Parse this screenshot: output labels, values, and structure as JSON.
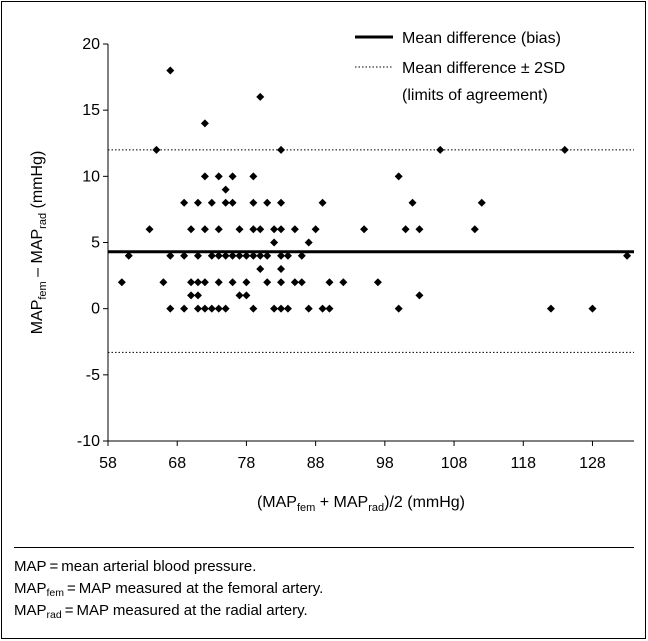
{
  "chart_data": {
    "type": "scatter",
    "title": "",
    "xlabel": {
      "pre": "(MAP",
      "sub1": "fem",
      "mid": " + MAP",
      "sub2": "rad",
      "post": ")/2 (mmHg)"
    },
    "ylabel": {
      "pre": "MAP",
      "sub1": "fem",
      "mid": " – MAP",
      "sub2": "rad",
      "post": " (mmHg)"
    },
    "xlim": [
      58,
      134
    ],
    "ylim": [
      -10,
      20
    ],
    "xticks": [
      58,
      68,
      78,
      88,
      98,
      108,
      118,
      128
    ],
    "yticks": [
      -10,
      -5,
      0,
      5,
      10,
      15,
      20
    ],
    "grid": false,
    "legend_position": "top-right",
    "legend": [
      {
        "label": "Mean difference (bias)",
        "style": "solid"
      },
      {
        "label": "Mean difference ± 2SD",
        "style": "dotted"
      },
      {
        "label": "(limits of agreement)",
        "style": "none"
      }
    ],
    "lines": {
      "bias": 4.3,
      "upper_limit": 12,
      "lower_limit": -3.3
    },
    "points": [
      [
        60,
        2
      ],
      [
        61,
        4
      ],
      [
        64,
        6
      ],
      [
        65,
        12
      ],
      [
        66,
        2
      ],
      [
        67,
        4
      ],
      [
        67,
        18
      ],
      [
        67,
        0
      ],
      [
        69,
        8
      ],
      [
        69,
        4
      ],
      [
        69,
        0
      ],
      [
        70,
        2
      ],
      [
        70,
        1
      ],
      [
        70,
        6
      ],
      [
        71,
        8
      ],
      [
        71,
        4
      ],
      [
        71,
        1
      ],
      [
        71,
        0
      ],
      [
        71,
        2
      ],
      [
        72,
        14
      ],
      [
        72,
        10
      ],
      [
        72,
        6
      ],
      [
        72,
        2
      ],
      [
        72,
        0
      ],
      [
        73,
        8
      ],
      [
        73,
        4
      ],
      [
        73,
        0
      ],
      [
        74,
        10
      ],
      [
        74,
        6
      ],
      [
        74,
        2
      ],
      [
        74,
        4
      ],
      [
        74,
        0
      ],
      [
        75,
        8
      ],
      [
        75,
        4
      ],
      [
        75,
        9
      ],
      [
        75,
        0
      ],
      [
        76,
        10
      ],
      [
        76,
        8
      ],
      [
        76,
        4
      ],
      [
        76,
        2
      ],
      [
        77,
        4
      ],
      [
        77,
        1
      ],
      [
        77,
        6
      ],
      [
        78,
        2
      ],
      [
        78,
        4
      ],
      [
        78,
        1
      ],
      [
        79,
        10
      ],
      [
        79,
        8
      ],
      [
        79,
        6
      ],
      [
        79,
        4
      ],
      [
        79,
        0
      ],
      [
        80,
        6
      ],
      [
        80,
        4
      ],
      [
        80,
        16
      ],
      [
        80,
        3
      ],
      [
        81,
        8
      ],
      [
        81,
        4
      ],
      [
        81,
        2
      ],
      [
        82,
        5
      ],
      [
        82,
        0
      ],
      [
        82,
        6
      ],
      [
        83,
        12
      ],
      [
        83,
        8
      ],
      [
        83,
        4
      ],
      [
        83,
        6
      ],
      [
        83,
        3
      ],
      [
        83,
        2
      ],
      [
        83,
        0
      ],
      [
        84,
        0
      ],
      [
        84,
        4
      ],
      [
        85,
        2
      ],
      [
        85,
        6
      ],
      [
        86,
        4
      ],
      [
        86,
        2
      ],
      [
        87,
        5
      ],
      [
        87,
        0
      ],
      [
        88,
        6
      ],
      [
        89,
        8
      ],
      [
        89,
        0
      ],
      [
        90,
        0
      ],
      [
        90,
        2
      ],
      [
        92,
        2
      ],
      [
        95,
        6
      ],
      [
        97,
        2
      ],
      [
        100,
        10
      ],
      [
        100,
        0
      ],
      [
        101,
        6
      ],
      [
        102,
        8
      ],
      [
        103,
        6
      ],
      [
        103,
        1
      ],
      [
        106,
        12
      ],
      [
        111,
        6
      ],
      [
        112,
        8
      ],
      [
        122,
        0
      ],
      [
        124,
        12
      ],
      [
        128,
        0
      ],
      [
        133,
        4
      ]
    ]
  },
  "footnotes": [
    {
      "pre": "MAP",
      "sub": "",
      "post": " = mean arterial blood pressure."
    },
    {
      "pre": "MAP",
      "sub": "fem",
      "post": " = MAP measured at the femoral artery."
    },
    {
      "pre": "MAP",
      "sub": "rad",
      "post": " = MAP measured at the radial artery."
    }
  ]
}
